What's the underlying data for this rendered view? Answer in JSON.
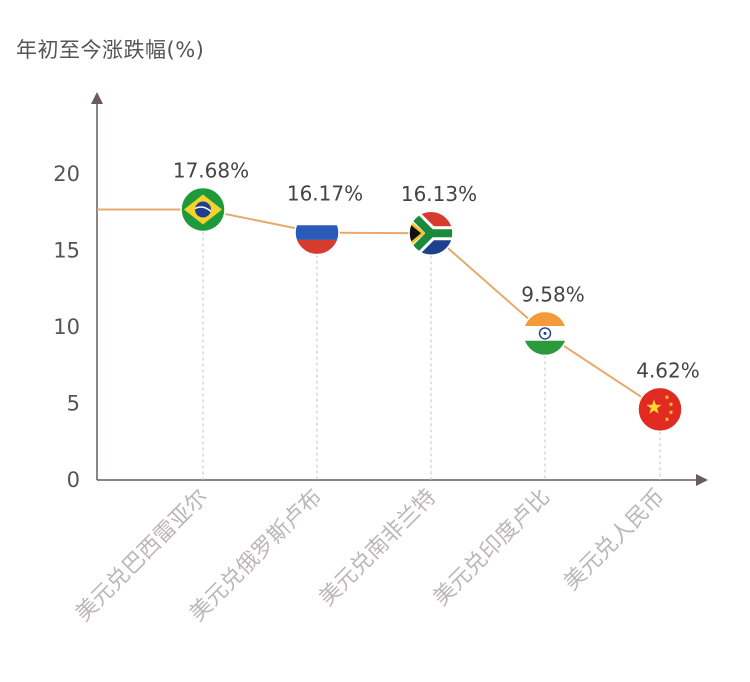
{
  "chart_data": {
    "type": "line",
    "ylabel": "年初至今涨跌幅(%)",
    "xlabel": "",
    "ylim": [
      0,
      25
    ],
    "yticks": [
      "0",
      "5",
      "10",
      "15",
      "20"
    ],
    "categories": [
      "美元兑巴西雷亚尔",
      "美元兑俄罗斯卢布",
      "美元兑南非兰特",
      "美元兑印度卢比",
      "美元兑人民币"
    ],
    "values": [
      17.68,
      16.17,
      16.13,
      9.58,
      4.62
    ],
    "data_labels": [
      "17.68%",
      "16.17%",
      "16.13%",
      "9.58%",
      "4.62%"
    ],
    "markers": [
      "brazil-flag-icon",
      "russia-flag-icon",
      "south-africa-flag-icon",
      "india-flag-icon",
      "china-flag-icon"
    ],
    "colors": {
      "line": "#e8a96d",
      "axis": "#6b5a5e",
      "text": "#555555",
      "guide": "#c9c0c4"
    }
  }
}
